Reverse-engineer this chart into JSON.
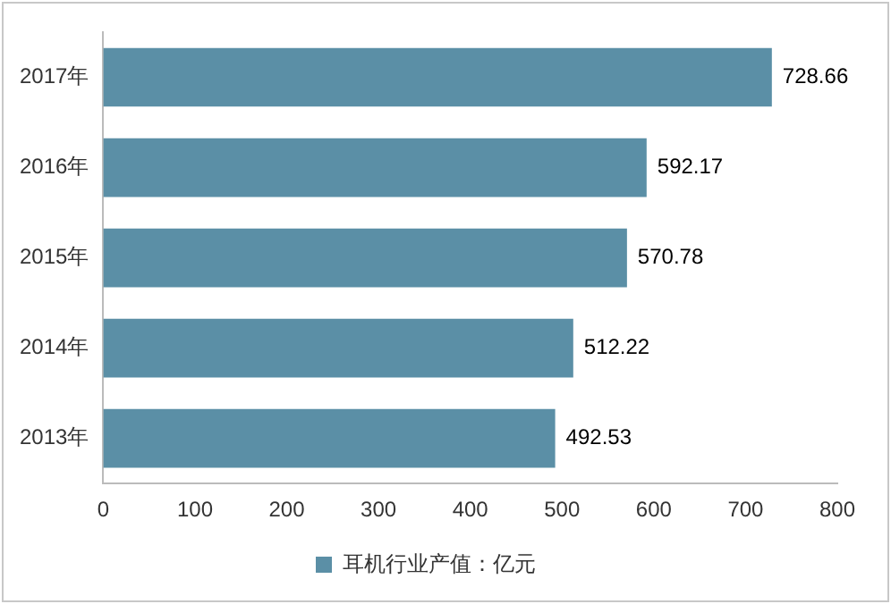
{
  "chart_data": {
    "type": "bar",
    "orientation": "horizontal",
    "categories": [
      "2017年",
      "2016年",
      "2015年",
      "2014年",
      "2013年"
    ],
    "series": [
      {
        "name": "耳机行业产值：亿元",
        "color": "#5b8fa6",
        "values": [
          728.66,
          592.17,
          570.78,
          512.22,
          492.53
        ]
      }
    ],
    "xlim": [
      0,
      800
    ],
    "xticks": [
      0,
      100,
      200,
      300,
      400,
      500,
      600,
      700,
      800
    ],
    "grid": false,
    "legend": "bottom",
    "data_labels": true
  }
}
